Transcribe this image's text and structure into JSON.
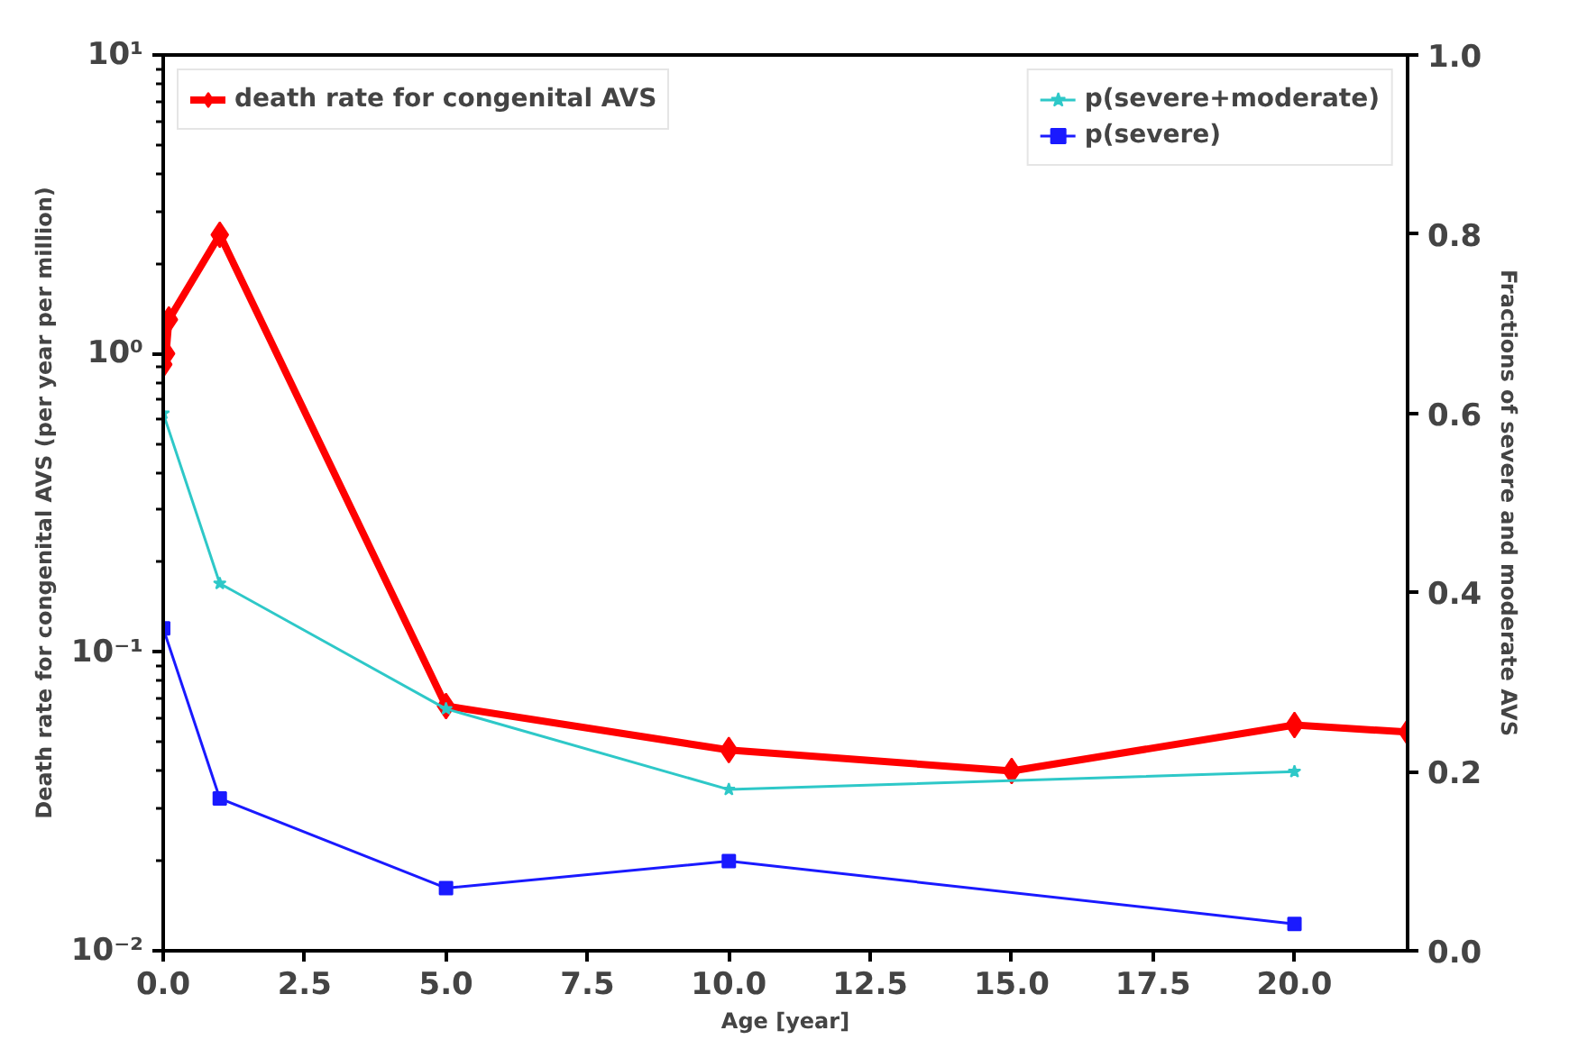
{
  "chart_data": {
    "type": "line",
    "xlabel": "Age [year]",
    "ylabel": "Death rate for congenital AVS (per year per million)",
    "y2label": "Fractions of severe and moderate AVS",
    "log": "y",
    "grid": false,
    "legend": "top",
    "xlim": [
      0,
      22
    ],
    "xticks": [
      {
        "value": 0,
        "label": "0.0"
      },
      {
        "value": 2.5,
        "label": "2.5"
      },
      {
        "value": 5,
        "label": "5.0"
      },
      {
        "value": 7.5,
        "label": "7.5"
      },
      {
        "value": 10,
        "label": "10.0"
      },
      {
        "value": 12.5,
        "label": "12.5"
      },
      {
        "value": 15,
        "label": "15.0"
      },
      {
        "value": 17.5,
        "label": "17.5"
      },
      {
        "value": 20,
        "label": "20.0"
      }
    ],
    "ylim": [
      0.01,
      10
    ],
    "yticks": [
      {
        "value": 0.01,
        "label": "10⁻²"
      },
      {
        "value": 0.1,
        "label": "10⁻¹"
      },
      {
        "value": 1,
        "label": "10⁰"
      },
      {
        "value": 10,
        "label": "10¹"
      }
    ],
    "y2lim": [
      0,
      1
    ],
    "y2ticks": [
      {
        "value": 0,
        "label": "0.0"
      },
      {
        "value": 0.2,
        "label": "0.2"
      },
      {
        "value": 0.4,
        "label": "0.4"
      },
      {
        "value": 0.6,
        "label": "0.6"
      },
      {
        "value": 0.8,
        "label": "0.8"
      },
      {
        "value": 1,
        "label": "1.0"
      }
    ],
    "series": [
      {
        "name": "death rate for congenital AVS",
        "color": "#ff0000",
        "marker": "diamond",
        "x": [
          0,
          0.05,
          0.1,
          1,
          5,
          10,
          15,
          20,
          22
        ],
        "values": [
          0.92,
          1.0,
          1.3,
          2.5,
          0.066,
          0.047,
          0.04,
          0.057,
          0.054
        ]
      },
      {
        "name": "p(severe+moderate)",
        "color": "#2ec8c8",
        "marker": "star",
        "axis": "y2",
        "x": [
          0,
          1,
          5,
          10,
          20
        ],
        "values": [
          0.6,
          0.41,
          0.27,
          0.18,
          0.2
        ]
      },
      {
        "name": "p(severe)",
        "color": "#1a1aff",
        "marker": "square",
        "axis": "y2",
        "x": [
          0,
          1,
          5,
          10,
          20
        ],
        "values": [
          0.36,
          0.17,
          0.07,
          0.1,
          0.03
        ]
      }
    ]
  }
}
